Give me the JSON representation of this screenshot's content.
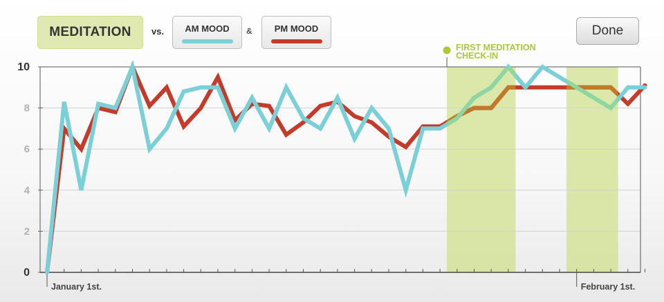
{
  "header": {
    "meditation_label": "MEDITATION",
    "vs_label": "vs.",
    "am_label": "AM MOOD",
    "amp_label": "&",
    "pm_label": "PM MOOD",
    "done_label": "Done"
  },
  "colors": {
    "am": "#7bd0d8",
    "pm": "#c23b2b",
    "meditation": "#cfe08a",
    "meditation_dot": "#a9c93b",
    "overlap_am": "#8fd6a0",
    "overlap_pm": "#c07a2a"
  },
  "chart_data": {
    "type": "line",
    "ylim": [
      0,
      10
    ],
    "yticks": [
      0,
      2,
      4,
      6,
      8,
      10
    ],
    "x": [
      1,
      2,
      3,
      4,
      5,
      6,
      7,
      8,
      9,
      10,
      11,
      12,
      13,
      14,
      15,
      16,
      17,
      18,
      19,
      20,
      21,
      22,
      23,
      24,
      25,
      26,
      27,
      28,
      29,
      30,
      31,
      32,
      33,
      34,
      35,
      36
    ],
    "x_labels": [
      {
        "x": 1,
        "label": "January 1st."
      },
      {
        "x": 32,
        "label": "February 1st."
      }
    ],
    "series": [
      {
        "name": "AM MOOD",
        "color_key": "am",
        "values": [
          0,
          8.3,
          4,
          8.2,
          8,
          10,
          6,
          7,
          8.8,
          9,
          9,
          7,
          8.5,
          7,
          9,
          7.5,
          7,
          8.5,
          6.5,
          8,
          7,
          4,
          7,
          7,
          7.5,
          8.5,
          9,
          10,
          9,
          10,
          9.5,
          9,
          8.5,
          8,
          9,
          9
        ]
      },
      {
        "name": "PM MOOD",
        "color_key": "pm",
        "values": [
          0,
          7,
          6,
          8,
          7.8,
          10,
          8.1,
          9,
          7.1,
          8,
          9.5,
          7.4,
          8.2,
          8.1,
          6.7,
          7.3,
          8.1,
          8.3,
          7.6,
          7.3,
          6.6,
          6.1,
          7.1,
          7.1,
          7.6,
          8,
          8,
          9,
          9,
          9,
          9,
          9,
          9,
          9,
          8.2,
          9.1
        ]
      }
    ],
    "meditation_days": [
      24,
      25,
      26,
      27,
      31,
      32,
      33
    ],
    "annotation": {
      "label": "FIRST MEDITATION CHECK-IN",
      "x": 24
    }
  }
}
